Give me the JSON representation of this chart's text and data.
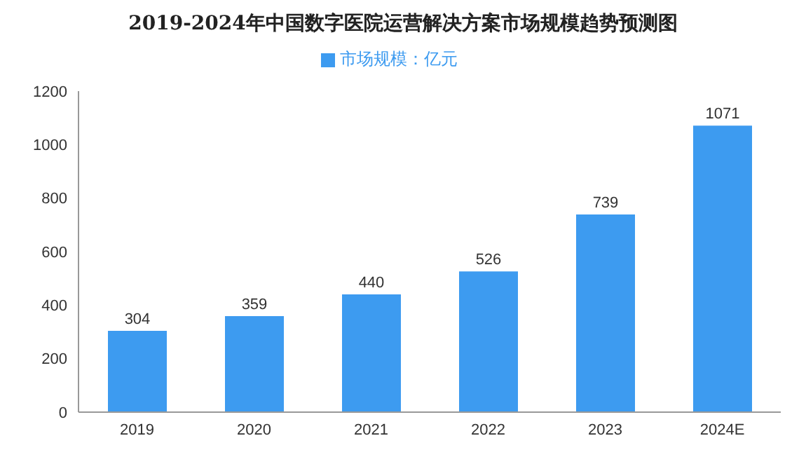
{
  "chart_data": {
    "type": "bar",
    "title": "2019-2024年中国数字医院运营解决方案市场规模趋势预测图",
    "categories": [
      "2019",
      "2020",
      "2021",
      "2022",
      "2023",
      "2024E"
    ],
    "series": [
      {
        "name": "市场规模：亿元",
        "color": "#3d9bf0",
        "values": [
          304,
          359,
          440,
          526,
          739,
          1071
        ]
      }
    ],
    "ylim": [
      0,
      1200
    ],
    "yticks": [
      0,
      200,
      400,
      600,
      800,
      1000,
      1200
    ],
    "grid": false,
    "legend": "top",
    "data_labels": true
  }
}
